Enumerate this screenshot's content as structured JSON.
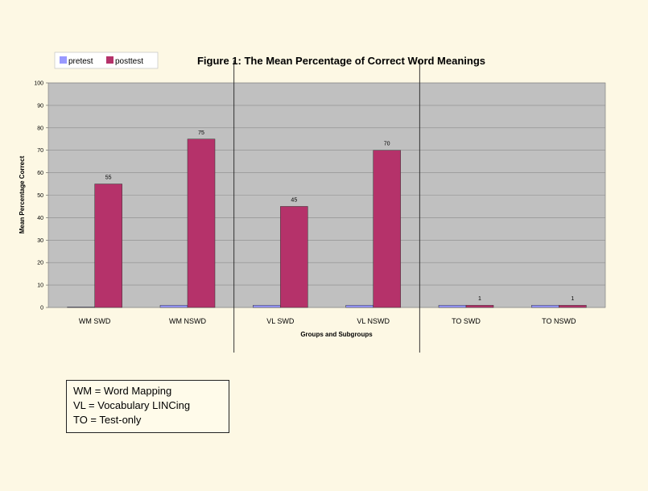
{
  "chart_data": {
    "type": "bar",
    "title": "Figure 1: The Mean Percentage of Correct Word Meanings",
    "xlabel": "Groups and Subgroups",
    "ylabel": "Mean Percentage Correct",
    "ylim": [
      0,
      100
    ],
    "yticks": [
      "0",
      "10",
      "20",
      "30",
      "40",
      "50",
      "60",
      "70",
      "80",
      "90",
      "100"
    ],
    "grid": true,
    "legend_position": "top-left",
    "categories": [
      "WM SWD",
      "WM NSWD",
      "VL SWD",
      "VL NSWD",
      "TO SWD",
      "TO NSWD"
    ],
    "series": [
      {
        "name": "pretest",
        "values": [
          0,
          1,
          1,
          1,
          1,
          1
        ],
        "color": "#9999ff",
        "labels": [
          "",
          "",
          "",
          "",
          "",
          ""
        ]
      },
      {
        "name": "posttest",
        "values": [
          55,
          75,
          45,
          70,
          1,
          1
        ],
        "color": "#b5326a",
        "labels": [
          "55",
          "75",
          "45",
          "70",
          "1",
          "1"
        ]
      }
    ],
    "plot_background": "#c0c0c0"
  },
  "key": {
    "lines": [
      "WM = Word Mapping",
      "VL = Vocabulary LINCing",
      "TO = Test-only"
    ]
  }
}
